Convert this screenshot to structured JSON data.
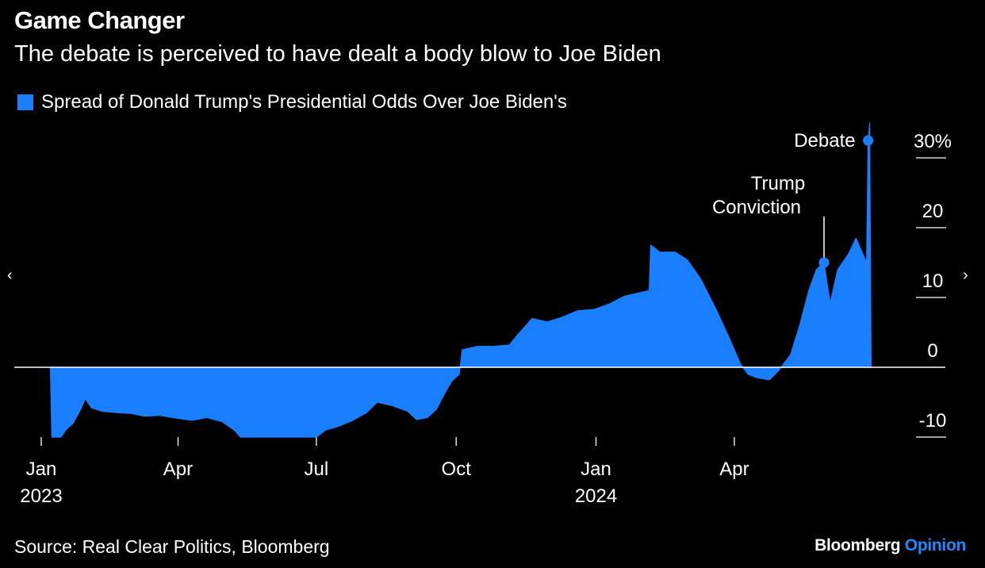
{
  "title": "Game Changer",
  "subtitle": "The debate is perceived to have dealt a body blow to Joe Biden",
  "source": "Source: Real Clear Politics, Bloomberg",
  "brand": {
    "name": "Bloomberg",
    "section": "Opinion"
  },
  "nav": {
    "prev": "‹",
    "next": "›"
  },
  "colors": {
    "series": "#1a7fff",
    "background": "#000000",
    "text": "#ffffff",
    "brand_accent": "#1a8cff"
  },
  "chart_data": {
    "type": "area",
    "title": "Game Changer",
    "subtitle": "The debate is perceived to have dealt a body blow to Joe Biden",
    "xlabel": "",
    "ylabel": "",
    "x_range": [
      "2023-01-01",
      "2024-07-05"
    ],
    "ylim": [
      -10,
      33
    ],
    "y_ticks": [
      {
        "value": 30,
        "label": "30%"
      },
      {
        "value": 20,
        "label": "20"
      },
      {
        "value": 10,
        "label": "10"
      },
      {
        "value": 0,
        "label": "0"
      },
      {
        "value": -10,
        "label": "-10"
      }
    ],
    "x_ticks": [
      {
        "date": "2023-01-01",
        "label": "Jan",
        "sublabel": "2023"
      },
      {
        "date": "2023-04-01",
        "label": "Apr",
        "sublabel": ""
      },
      {
        "date": "2023-07-01",
        "label": "Jul",
        "sublabel": ""
      },
      {
        "date": "2023-10-01",
        "label": "Oct",
        "sublabel": ""
      },
      {
        "date": "2024-01-01",
        "label": "Jan",
        "sublabel": "2024"
      },
      {
        "date": "2024-04-01",
        "label": "Apr",
        "sublabel": ""
      }
    ],
    "legend": {
      "position": "top-left",
      "entries": [
        "Spread of Donald Trump's Presidential Odds Over Joe Biden's"
      ]
    },
    "grid": false,
    "series": [
      {
        "name": "Spread of Donald Trump's Presidential Odds Over Joe Biden's",
        "color": "#1a7fff",
        "points": [
          [
            "2023-01-07",
            0
          ],
          [
            "2023-01-08",
            -10
          ],
          [
            "2023-01-14",
            -10
          ],
          [
            "2023-01-17",
            -9
          ],
          [
            "2023-01-22",
            -8
          ],
          [
            "2023-01-27",
            -6
          ],
          [
            "2023-01-30",
            -4.5
          ],
          [
            "2023-02-03",
            -5.8
          ],
          [
            "2023-02-10",
            -6.3
          ],
          [
            "2023-02-20",
            -6.5
          ],
          [
            "2023-03-01",
            -6.6
          ],
          [
            "2023-03-10",
            -7
          ],
          [
            "2023-03-20",
            -6.9
          ],
          [
            "2023-03-31",
            -7.3
          ],
          [
            "2023-04-10",
            -7.6
          ],
          [
            "2023-04-20",
            -7.2
          ],
          [
            "2023-04-30",
            -7.8
          ],
          [
            "2023-05-08",
            -9
          ],
          [
            "2023-05-12",
            -10
          ],
          [
            "2023-06-01",
            -10
          ],
          [
            "2023-06-21",
            -10
          ],
          [
            "2023-07-01",
            -10
          ],
          [
            "2023-07-07",
            -9
          ],
          [
            "2023-07-15",
            -8.5
          ],
          [
            "2023-07-25",
            -7.6
          ],
          [
            "2023-08-03",
            -6.5
          ],
          [
            "2023-08-10",
            -5
          ],
          [
            "2023-08-20",
            -5.5
          ],
          [
            "2023-08-30",
            -6.3
          ],
          [
            "2023-09-05",
            -7.5
          ],
          [
            "2023-09-12",
            -7.2
          ],
          [
            "2023-09-18",
            -6
          ],
          [
            "2023-09-24",
            -3.5
          ],
          [
            "2023-09-28",
            -2
          ],
          [
            "2023-10-03",
            -1
          ],
          [
            "2023-10-05",
            2.5
          ],
          [
            "2023-10-15",
            3
          ],
          [
            "2023-10-25",
            3
          ],
          [
            "2023-11-05",
            3.2
          ],
          [
            "2023-11-11",
            4.8
          ],
          [
            "2023-11-20",
            7
          ],
          [
            "2023-11-30",
            6.5
          ],
          [
            "2023-12-10",
            7.2
          ],
          [
            "2023-12-20",
            8.1
          ],
          [
            "2023-12-31",
            8.3
          ],
          [
            "2024-01-10",
            9.1
          ],
          [
            "2024-01-20",
            10.2
          ],
          [
            "2024-01-30",
            10.7
          ],
          [
            "2024-02-05",
            11
          ],
          [
            "2024-02-06",
            17.5
          ],
          [
            "2024-02-12",
            16.5
          ],
          [
            "2024-02-22",
            16.5
          ],
          [
            "2024-03-01",
            15.4
          ],
          [
            "2024-03-10",
            12.6
          ],
          [
            "2024-03-20",
            8.3
          ],
          [
            "2024-03-28",
            4.5
          ],
          [
            "2024-04-05",
            0.5
          ],
          [
            "2024-04-10",
            -1
          ],
          [
            "2024-04-16",
            -1.5
          ],
          [
            "2024-04-24",
            -1.8
          ],
          [
            "2024-04-30",
            -0.5
          ],
          [
            "2024-05-08",
            1.8
          ],
          [
            "2024-05-14",
            6
          ],
          [
            "2024-05-20",
            11
          ],
          [
            "2024-05-25",
            14
          ],
          [
            "2024-05-30",
            15
          ],
          [
            "2024-06-03",
            9.2
          ],
          [
            "2024-06-08",
            14
          ],
          [
            "2024-06-15",
            16.2
          ],
          [
            "2024-06-20",
            18.5
          ],
          [
            "2024-06-24",
            16.5
          ],
          [
            "2024-06-27",
            15
          ],
          [
            "2024-06-28",
            32
          ],
          [
            "2024-06-29",
            35
          ],
          [
            "2024-06-30",
            0
          ]
        ]
      }
    ],
    "annotations": [
      {
        "label": "Debate",
        "date": "2024-06-28",
        "value": 32.5,
        "label_side": "left"
      },
      {
        "label": "Trump Conviction",
        "date": "2024-05-30",
        "value": 15,
        "label_side": "above"
      }
    ]
  }
}
